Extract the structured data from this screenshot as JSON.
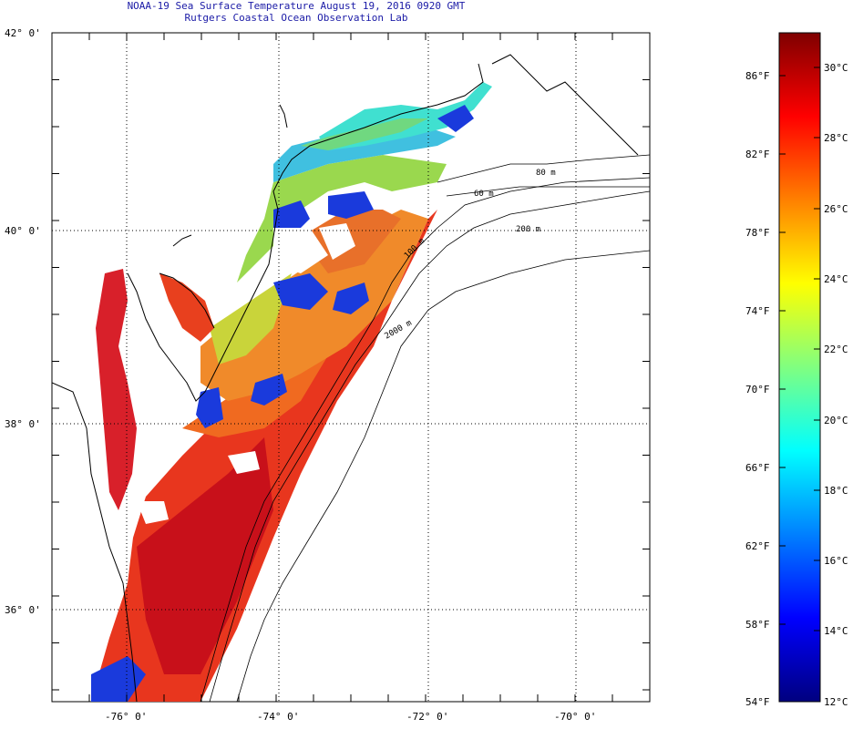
{
  "title": {
    "line1": "NOAA-19 Sea Surface Temperature August 19, 2016 0920 GMT",
    "line2": "Rutgers Coastal Ocean Observation Lab"
  },
  "map": {
    "lat_ticks": [
      {
        "lat": 42,
        "label": "42° 0'"
      },
      {
        "lat": 40,
        "label": "40° 0'"
      },
      {
        "lat": 38,
        "label": "38° 0'"
      },
      {
        "lat": 36,
        "label": "36° 0'"
      }
    ],
    "lon_ticks": [
      {
        "lon": -76,
        "label": "-76° 0'"
      },
      {
        "lon": -74,
        "label": "-74° 0'"
      },
      {
        "lon": -72,
        "label": "-72° 0'"
      },
      {
        "lon": -70,
        "label": "-70° 0'"
      }
    ],
    "isobaths": [
      {
        "label": "60 m"
      },
      {
        "label": "80 m"
      },
      {
        "label": "100 m"
      },
      {
        "label": "200 m"
      },
      {
        "label": "2000 m"
      }
    ]
  },
  "colorbar": {
    "fahrenheit_labels": [
      "86°F",
      "82°F",
      "78°F",
      "74°F",
      "70°F",
      "66°F",
      "62°F",
      "58°F",
      "54°F"
    ],
    "celsius_labels": [
      "30°C",
      "28°C",
      "26°C",
      "24°C",
      "22°C",
      "20°C",
      "18°C",
      "16°C",
      "14°C",
      "12°C"
    ],
    "colors": [
      "#00007f",
      "#0000ff",
      "#0080ff",
      "#00ffff",
      "#80ff80",
      "#ffff00",
      "#ff8000",
      "#ff0000",
      "#7f0000"
    ]
  }
}
